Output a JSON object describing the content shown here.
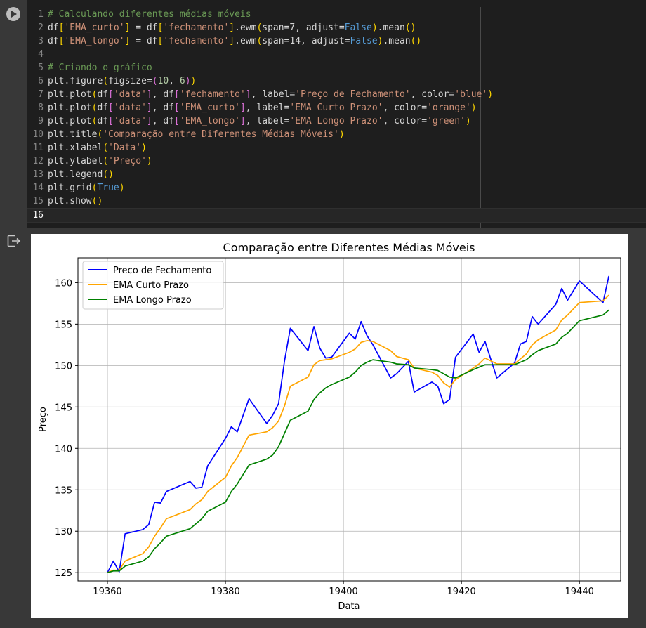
{
  "code": {
    "lines": [
      {
        "n": "1",
        "tokens": [
          [
            "c-com",
            "# Calculando diferentes médias móveis"
          ]
        ]
      },
      {
        "n": "2",
        "tokens": [
          [
            "c-txt",
            "df"
          ],
          [
            "c-br",
            "["
          ],
          [
            "c-str",
            "'EMA_curto'"
          ],
          [
            "c-br",
            "]"
          ],
          [
            "c-txt",
            " = df"
          ],
          [
            "c-br",
            "["
          ],
          [
            "c-str",
            "'fechamento'"
          ],
          [
            "c-br",
            "]"
          ],
          [
            "c-txt",
            ".ewm"
          ],
          [
            "c-br",
            "("
          ],
          [
            "c-txt",
            "span=7, adjust="
          ],
          [
            "c-kw",
            "False"
          ],
          [
            "c-br",
            ")"
          ],
          [
            "c-txt",
            ".mean"
          ],
          [
            "c-br",
            "()"
          ]
        ]
      },
      {
        "n": "3",
        "tokens": [
          [
            "c-txt",
            "df"
          ],
          [
            "c-br",
            "["
          ],
          [
            "c-str",
            "'EMA_longo'"
          ],
          [
            "c-br",
            "]"
          ],
          [
            "c-txt",
            " = df"
          ],
          [
            "c-br",
            "["
          ],
          [
            "c-str",
            "'fechamento'"
          ],
          [
            "c-br",
            "]"
          ],
          [
            "c-txt",
            ".ewm"
          ],
          [
            "c-br",
            "("
          ],
          [
            "c-txt",
            "span=14, adjust="
          ],
          [
            "c-kw",
            "False"
          ],
          [
            "c-br",
            ")"
          ],
          [
            "c-txt",
            ".mean"
          ],
          [
            "c-br",
            "()"
          ]
        ]
      },
      {
        "n": "4",
        "tokens": []
      },
      {
        "n": "5",
        "tokens": [
          [
            "c-com",
            "# Criando o gráfico"
          ]
        ]
      },
      {
        "n": "6",
        "tokens": [
          [
            "c-txt",
            "plt.figure"
          ],
          [
            "c-br",
            "("
          ],
          [
            "c-txt",
            "figsize="
          ],
          [
            "c-br2",
            "("
          ],
          [
            "c-num",
            "10"
          ],
          [
            "c-txt",
            ", "
          ],
          [
            "c-num",
            "6"
          ],
          [
            "c-br2",
            ")"
          ],
          [
            "c-br",
            ")"
          ]
        ]
      },
      {
        "n": "7",
        "tokens": [
          [
            "c-txt",
            "plt.plot"
          ],
          [
            "c-br",
            "("
          ],
          [
            "c-txt",
            "df"
          ],
          [
            "c-br2",
            "["
          ],
          [
            "c-str",
            "'data'"
          ],
          [
            "c-br2",
            "]"
          ],
          [
            "c-txt",
            ", df"
          ],
          [
            "c-br2",
            "["
          ],
          [
            "c-str",
            "'fechamento'"
          ],
          [
            "c-br2",
            "]"
          ],
          [
            "c-txt",
            ", label="
          ],
          [
            "c-str",
            "'Preço de Fechamento'"
          ],
          [
            "c-txt",
            ", color="
          ],
          [
            "c-str",
            "'blue'"
          ],
          [
            "c-br",
            ")"
          ]
        ]
      },
      {
        "n": "8",
        "tokens": [
          [
            "c-txt",
            "plt.plot"
          ],
          [
            "c-br",
            "("
          ],
          [
            "c-txt",
            "df"
          ],
          [
            "c-br2",
            "["
          ],
          [
            "c-str",
            "'data'"
          ],
          [
            "c-br2",
            "]"
          ],
          [
            "c-txt",
            ", df"
          ],
          [
            "c-br2",
            "["
          ],
          [
            "c-str",
            "'EMA_curto'"
          ],
          [
            "c-br2",
            "]"
          ],
          [
            "c-txt",
            ", label="
          ],
          [
            "c-str",
            "'EMA Curto Prazo'"
          ],
          [
            "c-txt",
            ", color="
          ],
          [
            "c-str",
            "'orange'"
          ],
          [
            "c-br",
            ")"
          ]
        ]
      },
      {
        "n": "9",
        "tokens": [
          [
            "c-txt",
            "plt.plot"
          ],
          [
            "c-br",
            "("
          ],
          [
            "c-txt",
            "df"
          ],
          [
            "c-br2",
            "["
          ],
          [
            "c-str",
            "'data'"
          ],
          [
            "c-br2",
            "]"
          ],
          [
            "c-txt",
            ", df"
          ],
          [
            "c-br2",
            "["
          ],
          [
            "c-str",
            "'EMA_longo'"
          ],
          [
            "c-br2",
            "]"
          ],
          [
            "c-txt",
            ", label="
          ],
          [
            "c-str",
            "'EMA Longo Prazo'"
          ],
          [
            "c-txt",
            ", color="
          ],
          [
            "c-str",
            "'green'"
          ],
          [
            "c-br",
            ")"
          ]
        ]
      },
      {
        "n": "10",
        "tokens": [
          [
            "c-txt",
            "plt.title"
          ],
          [
            "c-br",
            "("
          ],
          [
            "c-str",
            "'Comparação entre Diferentes Médias Móveis'"
          ],
          [
            "c-br",
            ")"
          ]
        ]
      },
      {
        "n": "11",
        "tokens": [
          [
            "c-txt",
            "plt.xlabel"
          ],
          [
            "c-br",
            "("
          ],
          [
            "c-str",
            "'Data'"
          ],
          [
            "c-br",
            ")"
          ]
        ]
      },
      {
        "n": "12",
        "tokens": [
          [
            "c-txt",
            "plt.ylabel"
          ],
          [
            "c-br",
            "("
          ],
          [
            "c-str",
            "'Preço'"
          ],
          [
            "c-br",
            ")"
          ]
        ]
      },
      {
        "n": "13",
        "tokens": [
          [
            "c-txt",
            "plt.legend"
          ],
          [
            "c-br",
            "()"
          ]
        ]
      },
      {
        "n": "14",
        "tokens": [
          [
            "c-txt",
            "plt.grid"
          ],
          [
            "c-br",
            "("
          ],
          [
            "c-kw",
            "True"
          ],
          [
            "c-br",
            ")"
          ]
        ]
      },
      {
        "n": "15",
        "tokens": [
          [
            "c-txt",
            "plt.show"
          ],
          [
            "c-br",
            "()"
          ]
        ]
      },
      {
        "n": "16",
        "tokens": []
      }
    ]
  },
  "chart_data": {
    "type": "line",
    "title": "Comparação entre Diferentes Médias Móveis",
    "xlabel": "Data",
    "ylabel": "Preço",
    "xlim": [
      19355,
      19447
    ],
    "ylim": [
      124,
      163
    ],
    "xticks": [
      19360,
      19380,
      19400,
      19420,
      19440
    ],
    "yticks": [
      125,
      130,
      135,
      140,
      145,
      150,
      155,
      160
    ],
    "grid": true,
    "legend": "top-left",
    "series": [
      {
        "name": "Preço de Fechamento",
        "color": "#0000ff",
        "x": [
          19360,
          19361,
          19362,
          19363,
          19366,
          19367,
          19368,
          19369,
          19370,
          19374,
          19375,
          19376,
          19377,
          19380,
          19381,
          19382,
          19384,
          19387,
          19388,
          19389,
          19390,
          19391,
          19394,
          19395,
          19396,
          19397,
          19398,
          19401,
          19402,
          19403,
          19404,
          19405,
          19408,
          19409,
          19411,
          19412,
          19415,
          19416,
          19417,
          19418,
          19419,
          19422,
          19423,
          19424,
          19426,
          19429,
          19430,
          19431,
          19432,
          19433,
          19436,
          19437,
          19438,
          19440,
          19444,
          19445
        ],
        "y": [
          125.0,
          126.4,
          125.1,
          129.7,
          130.2,
          130.8,
          133.5,
          133.4,
          134.8,
          136.0,
          135.2,
          135.3,
          137.9,
          141.2,
          142.6,
          142.0,
          146.0,
          143.0,
          144.0,
          145.4,
          150.5,
          154.5,
          151.8,
          154.7,
          152.1,
          150.9,
          151.0,
          153.9,
          153.2,
          155.3,
          153.6,
          152.5,
          148.5,
          149.0,
          150.5,
          146.8,
          148.0,
          147.5,
          145.4,
          145.9,
          151.0,
          153.8,
          151.6,
          152.9,
          148.5,
          150.3,
          152.6,
          152.9,
          155.9,
          155.0,
          157.4,
          159.3,
          157.9,
          160.2,
          157.6,
          160.8
        ]
      },
      {
        "name": "EMA Curto Prazo",
        "color": "#ffa500",
        "x": [
          19360,
          19361,
          19362,
          19363,
          19366,
          19367,
          19368,
          19369,
          19370,
          19374,
          19375,
          19376,
          19377,
          19380,
          19381,
          19382,
          19384,
          19387,
          19388,
          19389,
          19390,
          19391,
          19394,
          19395,
          19396,
          19397,
          19398,
          19401,
          19402,
          19403,
          19404,
          19405,
          19408,
          19409,
          19411,
          19412,
          19415,
          19416,
          19417,
          19418,
          19419,
          19422,
          19423,
          19424,
          19426,
          19429,
          19430,
          19431,
          19432,
          19433,
          19436,
          19437,
          19438,
          19440,
          19444,
          19445
        ],
        "y": [
          125.0,
          125.3,
          125.3,
          126.4,
          127.3,
          128.1,
          129.4,
          130.4,
          131.5,
          132.6,
          133.3,
          133.8,
          134.8,
          136.5,
          137.9,
          138.9,
          141.6,
          142.0,
          142.5,
          143.3,
          145.1,
          147.5,
          148.6,
          150.1,
          150.6,
          150.7,
          150.8,
          151.6,
          152.0,
          152.8,
          153.0,
          152.9,
          151.8,
          151.1,
          150.7,
          149.7,
          149.2,
          148.8,
          147.9,
          147.4,
          148.3,
          149.7,
          150.2,
          150.9,
          150.2,
          150.2,
          150.8,
          151.4,
          152.5,
          153.1,
          154.3,
          155.5,
          156.1,
          157.6,
          157.8,
          158.5
        ]
      },
      {
        "name": "EMA Longo Prazo",
        "color": "#008000",
        "x": [
          19360,
          19361,
          19362,
          19363,
          19366,
          19367,
          19368,
          19369,
          19370,
          19374,
          19375,
          19376,
          19377,
          19380,
          19381,
          19382,
          19384,
          19387,
          19388,
          19389,
          19390,
          19391,
          19394,
          19395,
          19396,
          19397,
          19398,
          19401,
          19402,
          19403,
          19404,
          19405,
          19408,
          19409,
          19411,
          19412,
          19415,
          19416,
          19417,
          19418,
          19419,
          19422,
          19423,
          19424,
          19426,
          19429,
          19430,
          19431,
          19432,
          19433,
          19436,
          19437,
          19438,
          19440,
          19444,
          19445
        ],
        "y": [
          125.0,
          125.2,
          125.2,
          125.8,
          126.4,
          126.9,
          127.9,
          128.6,
          129.4,
          130.3,
          130.9,
          131.5,
          132.4,
          133.5,
          134.8,
          135.7,
          138.0,
          138.7,
          139.2,
          140.2,
          141.8,
          143.4,
          144.5,
          145.9,
          146.7,
          147.3,
          147.7,
          148.6,
          149.2,
          150.0,
          150.4,
          150.7,
          150.4,
          150.2,
          150.1,
          149.7,
          149.5,
          149.4,
          149.0,
          148.6,
          148.5,
          149.5,
          149.8,
          150.1,
          150.1,
          150.1,
          150.4,
          150.7,
          151.3,
          151.8,
          152.6,
          153.4,
          153.9,
          155.4,
          156.1,
          156.7
        ]
      }
    ]
  }
}
